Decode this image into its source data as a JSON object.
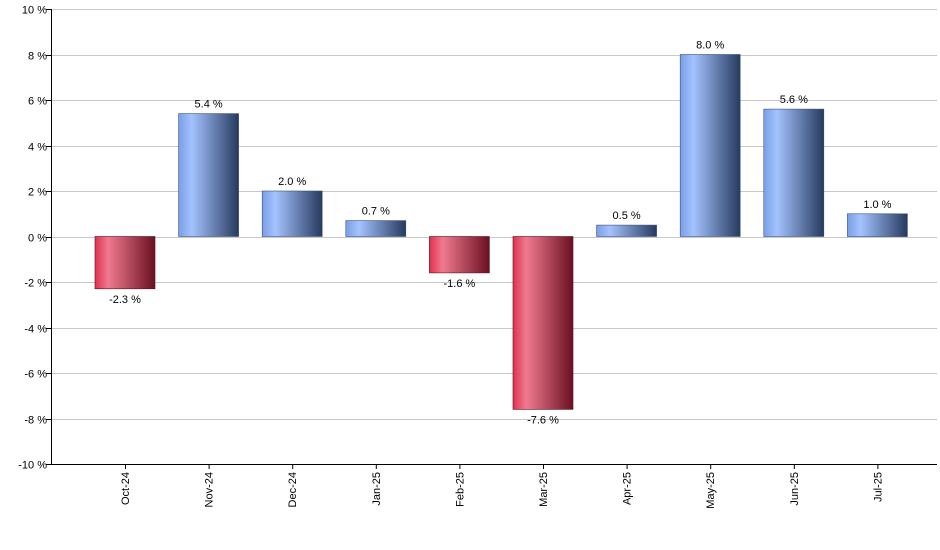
{
  "chart_data": {
    "type": "bar",
    "title": "",
    "xlabel": "",
    "ylabel": "",
    "categories": [
      "Oct-24",
      "Nov-24",
      "Dec-24",
      "Jan-25",
      "Feb-25",
      "Mar-25",
      "Apr-25",
      "May-25",
      "Jun-25",
      "Jul-25"
    ],
    "values": [
      -2.3,
      5.4,
      2.0,
      0.7,
      -1.6,
      -7.6,
      0.5,
      8.0,
      5.6,
      1.0
    ],
    "value_labels": [
      "-2.3 %",
      "5.4 %",
      "2.0 %",
      "0.7 %",
      "-1.6 %",
      "-7.6 %",
      "0.5 %",
      "8.0 %",
      "5.6 %",
      "1.0 %"
    ],
    "ylim": [
      -10,
      10
    ],
    "y_ticks": [
      10,
      8,
      6,
      4,
      2,
      0,
      -2,
      -4,
      -6,
      -8,
      -10
    ],
    "y_tick_labels": [
      "10 %",
      "8 %",
      "6 %",
      "4 %",
      "2 %",
      "0 %",
      "-2 %",
      "-4 %",
      "-6 %",
      "-8 %",
      "-10 %"
    ],
    "grid": true,
    "colors": {
      "positive_light": "#a4c2ff",
      "positive_mid": "#7a9fe6",
      "positive_dark": "#263a5e",
      "negative_light": "#f07a90",
      "negative_mid": "#e0304f",
      "negative_dark": "#6a1020",
      "grid": "#c8c8c8",
      "axis": "#000000"
    }
  }
}
